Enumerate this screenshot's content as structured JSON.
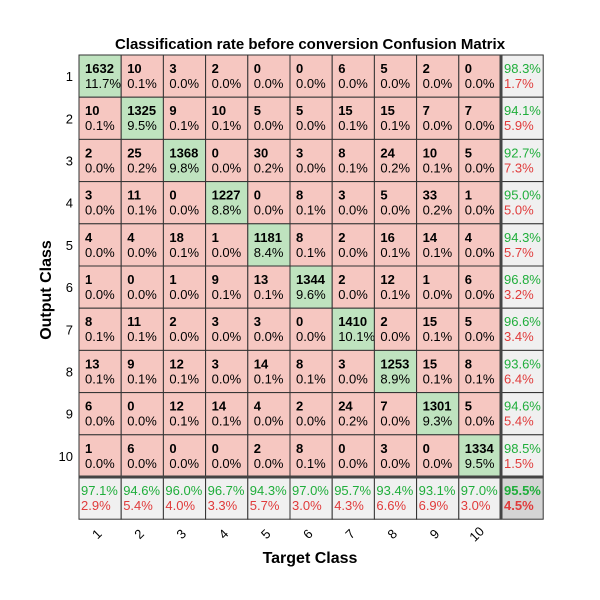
{
  "chart_data": {
    "type": "heatmap",
    "title": "Classification rate before conversion Confusion Matrix",
    "xlabel": "Target Class",
    "ylabel": "Output Class",
    "classes": [
      "1",
      "2",
      "3",
      "4",
      "5",
      "6",
      "7",
      "8",
      "9",
      "10"
    ],
    "matrix": [
      {
        "counts": [
          1632,
          10,
          3,
          2,
          0,
          0,
          6,
          5,
          2,
          0
        ],
        "pcts": [
          "11.7%",
          "0.1%",
          "0.0%",
          "0.0%",
          "0.0%",
          "0.0%",
          "0.0%",
          "0.0%",
          "0.0%",
          "0.0%"
        ],
        "row_correct": "98.3%",
        "row_error": "1.7%"
      },
      {
        "counts": [
          10,
          1325,
          9,
          10,
          5,
          5,
          15,
          15,
          7,
          7
        ],
        "pcts": [
          "0.1%",
          "9.5%",
          "0.1%",
          "0.1%",
          "0.0%",
          "0.0%",
          "0.1%",
          "0.1%",
          "0.0%",
          "0.0%"
        ],
        "row_correct": "94.1%",
        "row_error": "5.9%"
      },
      {
        "counts": [
          2,
          25,
          1368,
          0,
          30,
          3,
          8,
          24,
          10,
          5
        ],
        "pcts": [
          "0.0%",
          "0.2%",
          "9.8%",
          "0.0%",
          "0.2%",
          "0.0%",
          "0.1%",
          "0.2%",
          "0.1%",
          "0.0%"
        ],
        "row_correct": "92.7%",
        "row_error": "7.3%"
      },
      {
        "counts": [
          3,
          11,
          0,
          1227,
          0,
          8,
          3,
          5,
          33,
          1
        ],
        "pcts": [
          "0.0%",
          "0.1%",
          "0.0%",
          "8.8%",
          "0.0%",
          "0.1%",
          "0.0%",
          "0.0%",
          "0.2%",
          "0.0%"
        ],
        "row_correct": "95.0%",
        "row_error": "5.0%"
      },
      {
        "counts": [
          4,
          4,
          18,
          1,
          1181,
          8,
          2,
          16,
          14,
          4
        ],
        "pcts": [
          "0.0%",
          "0.0%",
          "0.1%",
          "0.0%",
          "8.4%",
          "0.1%",
          "0.0%",
          "0.1%",
          "0.1%",
          "0.0%"
        ],
        "row_correct": "94.3%",
        "row_error": "5.7%"
      },
      {
        "counts": [
          1,
          0,
          1,
          9,
          13,
          1344,
          2,
          12,
          1,
          6
        ],
        "pcts": [
          "0.0%",
          "0.0%",
          "0.0%",
          "0.1%",
          "0.1%",
          "9.6%",
          "0.0%",
          "0.1%",
          "0.0%",
          "0.0%"
        ],
        "row_correct": "96.8%",
        "row_error": "3.2%"
      },
      {
        "counts": [
          8,
          11,
          2,
          3,
          3,
          0,
          1410,
          2,
          15,
          5
        ],
        "pcts": [
          "0.1%",
          "0.1%",
          "0.0%",
          "0.0%",
          "0.0%",
          "0.0%",
          "10.1%",
          "0.0%",
          "0.1%",
          "0.0%"
        ],
        "row_correct": "96.6%",
        "row_error": "3.4%"
      },
      {
        "counts": [
          13,
          9,
          12,
          3,
          14,
          8,
          3,
          1253,
          15,
          8
        ],
        "pcts": [
          "0.1%",
          "0.1%",
          "0.1%",
          "0.0%",
          "0.1%",
          "0.1%",
          "0.0%",
          "8.9%",
          "0.1%",
          "0.1%"
        ],
        "row_correct": "93.6%",
        "row_error": "6.4%"
      },
      {
        "counts": [
          6,
          0,
          12,
          14,
          4,
          2,
          24,
          7,
          1301,
          5
        ],
        "pcts": [
          "0.0%",
          "0.0%",
          "0.1%",
          "0.1%",
          "0.0%",
          "0.0%",
          "0.2%",
          "0.0%",
          "9.3%",
          "0.0%"
        ],
        "row_correct": "94.6%",
        "row_error": "5.4%"
      },
      {
        "counts": [
          1,
          6,
          0,
          0,
          2,
          8,
          0,
          3,
          0,
          1334
        ],
        "pcts": [
          "0.0%",
          "0.0%",
          "0.0%",
          "0.0%",
          "0.0%",
          "0.1%",
          "0.0%",
          "0.0%",
          "0.0%",
          "9.5%"
        ],
        "row_correct": "98.5%",
        "row_error": "1.5%"
      }
    ],
    "col_correct": [
      "97.1%",
      "94.6%",
      "96.0%",
      "96.7%",
      "94.3%",
      "97.0%",
      "95.7%",
      "93.4%",
      "93.1%",
      "97.0%"
    ],
    "col_error": [
      "2.9%",
      "5.4%",
      "4.0%",
      "3.3%",
      "5.7%",
      "3.0%",
      "4.3%",
      "6.6%",
      "6.9%",
      "3.0%"
    ],
    "overall_correct": "95.5%",
    "overall_error": "4.5%",
    "grid": true,
    "legend": "none"
  },
  "colors": {
    "diagonal": "#bfe3bf",
    "off_diagonal": "#f6c7c1",
    "summary": "#f0f0f0",
    "overall": "#d4d4d4",
    "correct_text": "#1fae3b",
    "error_text": "#e03b3b",
    "cell_border": "#333333"
  }
}
